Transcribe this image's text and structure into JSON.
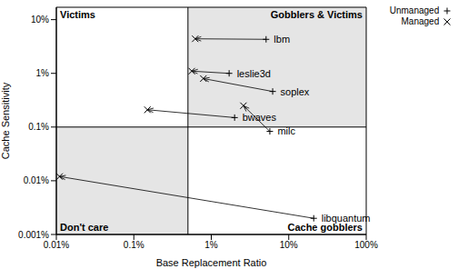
{
  "chart_data": {
    "type": "scatter",
    "log": true,
    "grid": false,
    "legend": "top-right",
    "x_label": "Base Replacement Ratio",
    "y_label": "Cache Sensitivity",
    "xlim": [
      0.01,
      100
    ],
    "ylim": [
      0.001,
      17
    ],
    "xticks": [
      {
        "value": 0.01,
        "label": "0.01%"
      },
      {
        "value": 0.1,
        "label": "0.1%"
      },
      {
        "value": 1,
        "label": "1%"
      },
      {
        "value": 10,
        "label": "10%"
      },
      {
        "value": 100,
        "label": "100%"
      }
    ],
    "yticks": [
      {
        "value": 0.001,
        "label": "0.001%"
      },
      {
        "value": 0.01,
        "label": "0.01%"
      },
      {
        "value": 0.1,
        "label": "0.1%"
      },
      {
        "value": 1,
        "label": "1%"
      },
      {
        "value": 10,
        "label": "10%"
      }
    ],
    "thresholds": {
      "x": 0.5,
      "y": 0.1
    },
    "quadrants": {
      "top_left": "Victims",
      "top_right": "Gobblers & Victims",
      "bottom_left": "Don't care",
      "bottom_right": "Cache gobblers"
    },
    "labels": [
      "lbm",
      "leslie3d",
      "soplex",
      "bwaves",
      "milc",
      "libquantum"
    ],
    "series": [
      {
        "name": "Unmanaged",
        "marker": "plus",
        "color": "#000000",
        "x": [
          5.1,
          1.7,
          6.2,
          2.0,
          5.7,
          21
        ],
        "y": [
          4.3,
          1.0,
          0.46,
          0.15,
          0.083,
          0.002
        ]
      },
      {
        "name": "Managed",
        "marker": "cross",
        "color": "#000000",
        "x": [
          0.62,
          0.56,
          0.79,
          0.15,
          2.6,
          0.011
        ],
        "y": [
          4.4,
          1.1,
          0.8,
          0.21,
          0.25,
          0.012
        ]
      }
    ]
  }
}
